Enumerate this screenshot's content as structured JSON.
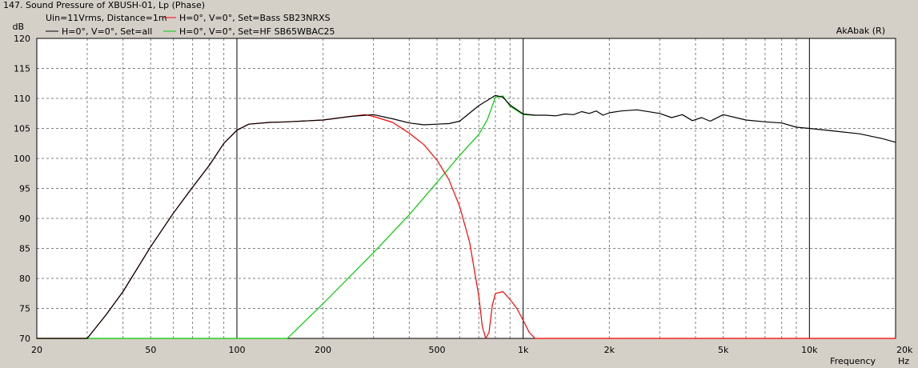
{
  "window": {
    "title": "147. Sound Pressure of XBUSH-01, Lp (Phase)"
  },
  "chart_data": {
    "type": "line",
    "x_scale": "log",
    "xlim": [
      20,
      20000
    ],
    "ylim": [
      70,
      120
    ],
    "grid": true,
    "xlabel": "Frequency",
    "xunit": "Hz",
    "yunit": "dB",
    "brand": "AkAbak (R)",
    "info": "Uin=11Vrms, Distance=1m",
    "x_ticks": [
      {
        "v": 20,
        "t": "20"
      },
      {
        "v": 50,
        "t": "50"
      },
      {
        "v": 100,
        "t": "100"
      },
      {
        "v": 200,
        "t": "200"
      },
      {
        "v": 500,
        "t": "500"
      },
      {
        "v": 1000,
        "t": "1k"
      },
      {
        "v": 2000,
        "t": "2k"
      },
      {
        "v": 5000,
        "t": "5k"
      },
      {
        "v": 10000,
        "t": "10k"
      },
      {
        "v": 20000,
        "t": "20k"
      }
    ],
    "y_ticks": [
      70,
      75,
      80,
      85,
      90,
      95,
      100,
      105,
      110,
      115,
      120
    ],
    "series": [
      {
        "name": "H=0°, V=0°, Set=all",
        "color": "#000000",
        "x": [
          20,
          30,
          35,
          40,
          50,
          60,
          70,
          80,
          90,
          100,
          110,
          130,
          150,
          200,
          250,
          300,
          350,
          400,
          450,
          500,
          550,
          600,
          700,
          800,
          850,
          900,
          1000,
          1100,
          1200,
          1300,
          1400,
          1500,
          1600,
          1700,
          1800,
          1900,
          2000,
          2200,
          2500,
          3000,
          3300,
          3600,
          3900,
          4200,
          4500,
          5000,
          6000,
          7000,
          8000,
          9000,
          10000,
          12000,
          15000,
          18000,
          20000
        ],
        "y": [
          70,
          70,
          74,
          77.8,
          85.3,
          90.9,
          95.2,
          98.8,
          102.5,
          104.7,
          105.7,
          106,
          106.1,
          106.4,
          107,
          107.3,
          106.6,
          105.9,
          105.6,
          105.7,
          105.8,
          106.2,
          108.8,
          110.5,
          110.2,
          108.9,
          107.4,
          107.2,
          107.2,
          107.1,
          107.4,
          107.3,
          107.8,
          107.5,
          107.9,
          107.2,
          107.6,
          107.9,
          108.1,
          107.5,
          106.8,
          107.3,
          106.3,
          106.8,
          106.2,
          107.3,
          106.4,
          106.1,
          105.9,
          105.2,
          105,
          104.6,
          104.1,
          103.3,
          102.7
        ]
      },
      {
        "name": "H=0°, V=0°, Set=Bass SB23NRXS",
        "color": "#ff0000",
        "x": [
          20,
          30,
          35,
          40,
          50,
          60,
          70,
          80,
          90,
          100,
          110,
          130,
          150,
          200,
          250,
          280,
          300,
          350,
          400,
          450,
          500,
          550,
          600,
          650,
          700,
          720,
          740,
          760,
          780,
          800,
          850,
          900,
          950,
          1000,
          1050,
          1100,
          20000
        ],
        "y": [
          70,
          70,
          74,
          77.8,
          85.3,
          90.9,
          95.2,
          98.8,
          102.5,
          104.7,
          105.7,
          106,
          106.1,
          106.4,
          107,
          107.3,
          107,
          106,
          104.2,
          102.3,
          99.7,
          96.5,
          92,
          86,
          77,
          72,
          70,
          71,
          75.5,
          77.5,
          77.8,
          76.5,
          75,
          73,
          71,
          70,
          70
        ]
      },
      {
        "name": "H=0°, V=0°, Set=HF SB65WBAC25",
        "color": "#00cc00",
        "x": [
          20,
          150,
          200,
          300,
          400,
          500,
          600,
          700,
          750,
          800,
          850,
          900,
          1000,
          1100
        ],
        "y": [
          70,
          70,
          75.8,
          84.3,
          90.6,
          96,
          100.5,
          104,
          106.5,
          110.2,
          110.4,
          108.7,
          107.3,
          107.2
        ]
      }
    ]
  }
}
